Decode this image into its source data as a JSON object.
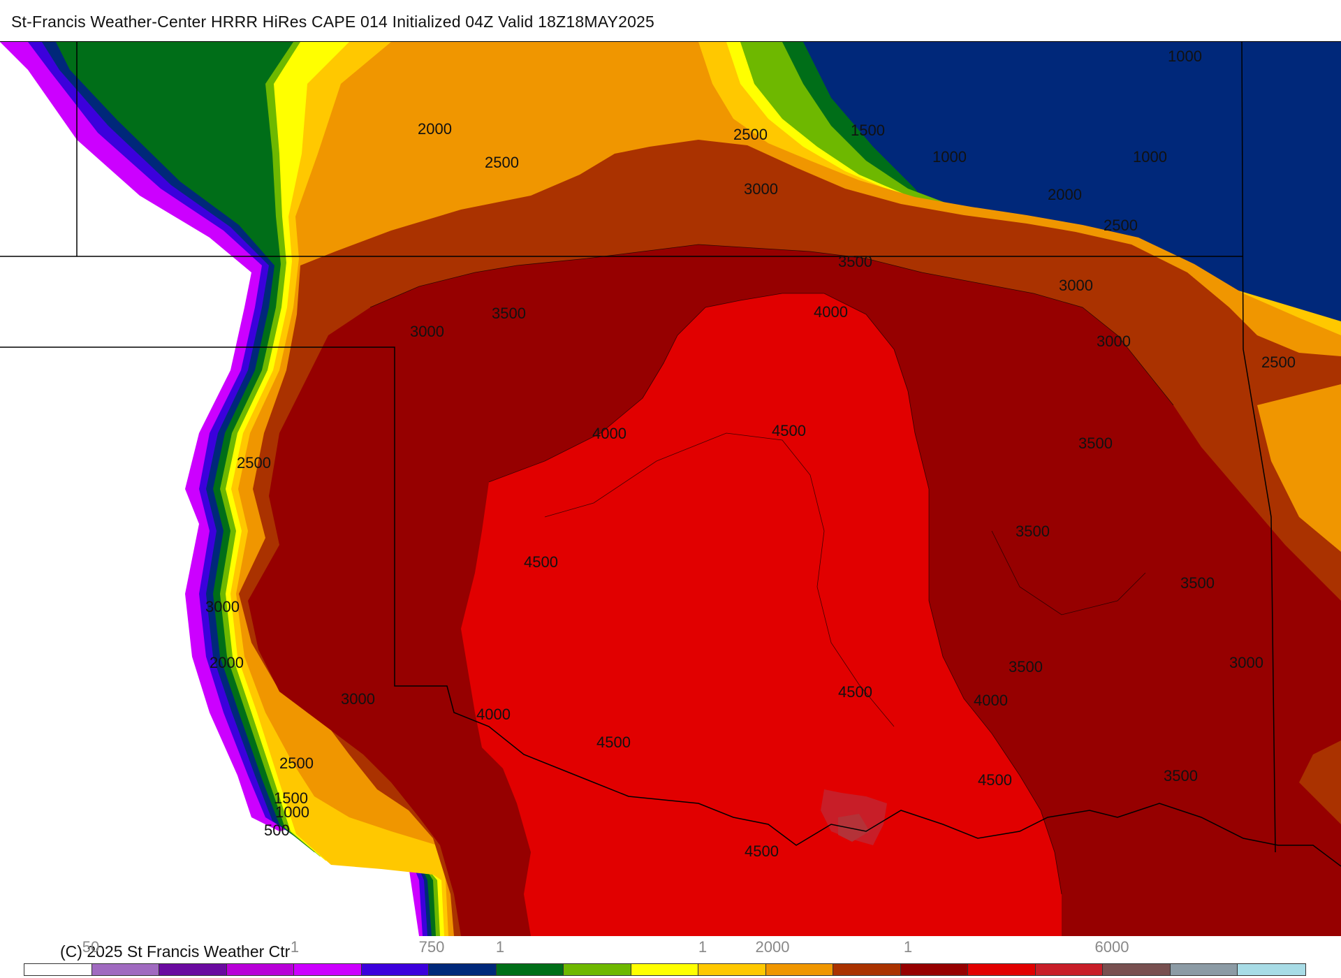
{
  "title": "St-Francis Weather-Center HRRR HiRes CAPE  014 Initialized  04Z Valid 18Z18MAY2025",
  "copyright": "(C) 2025 St Francis Weather Ctr",
  "contour_labels": [
    "1000",
    "1500",
    "1000",
    "1000",
    "2000",
    "2500",
    "2500",
    "3000",
    "2000",
    "2500",
    "3000",
    "3500",
    "3500",
    "3000",
    "4000",
    "3000",
    "2500",
    "3000",
    "4000",
    "4500",
    "3500",
    "2500",
    "3500",
    "4500",
    "3500",
    "3000",
    "3000",
    "2000",
    "3000",
    "3500",
    "4500",
    "4000",
    "4000",
    "4500",
    "2500",
    "4500",
    "1500",
    "1000",
    "500",
    "4500",
    "3500",
    "2500"
  ],
  "legend": {
    "tick_labels": [
      "50",
      "1",
      "750",
      "1",
      "1",
      "2000",
      "1",
      "6000"
    ],
    "colors": [
      "#ffffff",
      "#a06ac0",
      "#6a0aa0",
      "#b800d8",
      "#cc00ff",
      "#3c00dc",
      "#00287a",
      "#006e18",
      "#6eb800",
      "#ffff00",
      "#ffc800",
      "#f09600",
      "#aa3200",
      "#960000",
      "#e10000",
      "#c81e28",
      "#785050",
      "#8c9ba5",
      "#a8dce6"
    ]
  },
  "map": {
    "fill_colors": {
      "background": "#ffffff",
      "c250": "#cc00ff",
      "c500": "#3c00dc",
      "c750": "#00287a",
      "c1000": "#006e18",
      "c1250": "#6eb800",
      "c1500": "#ffff00",
      "c1750": "#ffc800",
      "c2000": "#f09600",
      "c2500": "#aa3200",
      "c3000": "#960000",
      "c4000": "#e10000",
      "c4750": "#c81e28"
    }
  }
}
